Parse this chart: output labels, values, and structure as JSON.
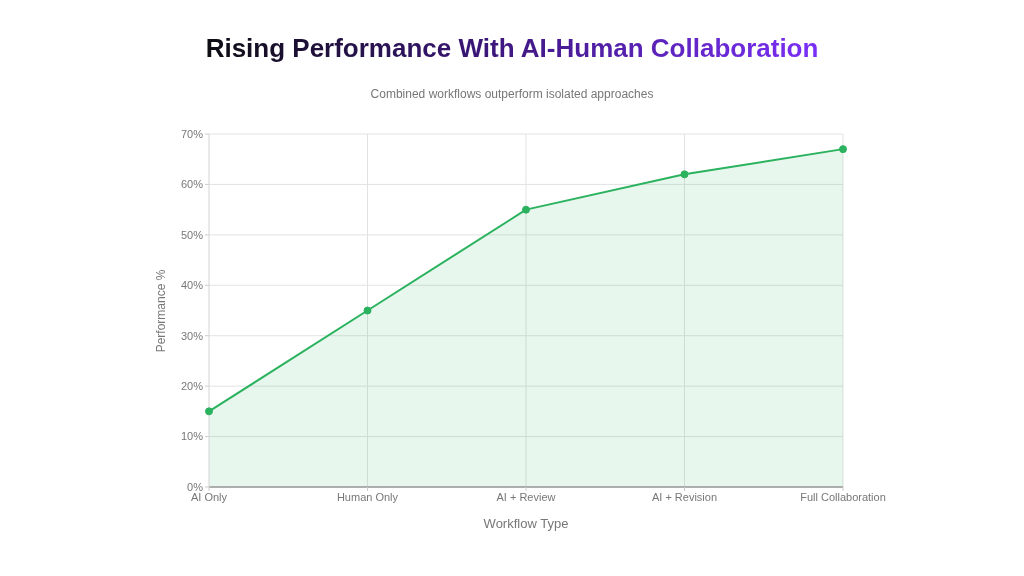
{
  "chart_data": {
    "type": "area",
    "title": "Rising Performance With AI-Human Collaboration",
    "subtitle": "Combined workflows outperform isolated approaches",
    "xlabel": "Workflow Type",
    "ylabel": "Performance %",
    "categories": [
      "AI Only",
      "Human Only",
      "AI + Review",
      "AI + Revision",
      "Full Collaboration"
    ],
    "series": [
      {
        "color": "#2bb25f",
        "values": [
          15,
          35,
          55,
          62,
          67
        ]
      }
    ],
    "ylim": [
      0,
      70
    ],
    "yticks": [
      {
        "value": 0,
        "label": "0%"
      },
      {
        "value": 10,
        "label": "10%"
      },
      {
        "value": 20,
        "label": "20%"
      },
      {
        "value": 30,
        "label": "30%"
      },
      {
        "value": 40,
        "label": "40%"
      },
      {
        "value": 50,
        "label": "50%"
      },
      {
        "value": 60,
        "label": "60%"
      },
      {
        "value": 70,
        "label": "70%"
      }
    ],
    "grid": true,
    "marker": "circle",
    "line_style": "solid"
  }
}
